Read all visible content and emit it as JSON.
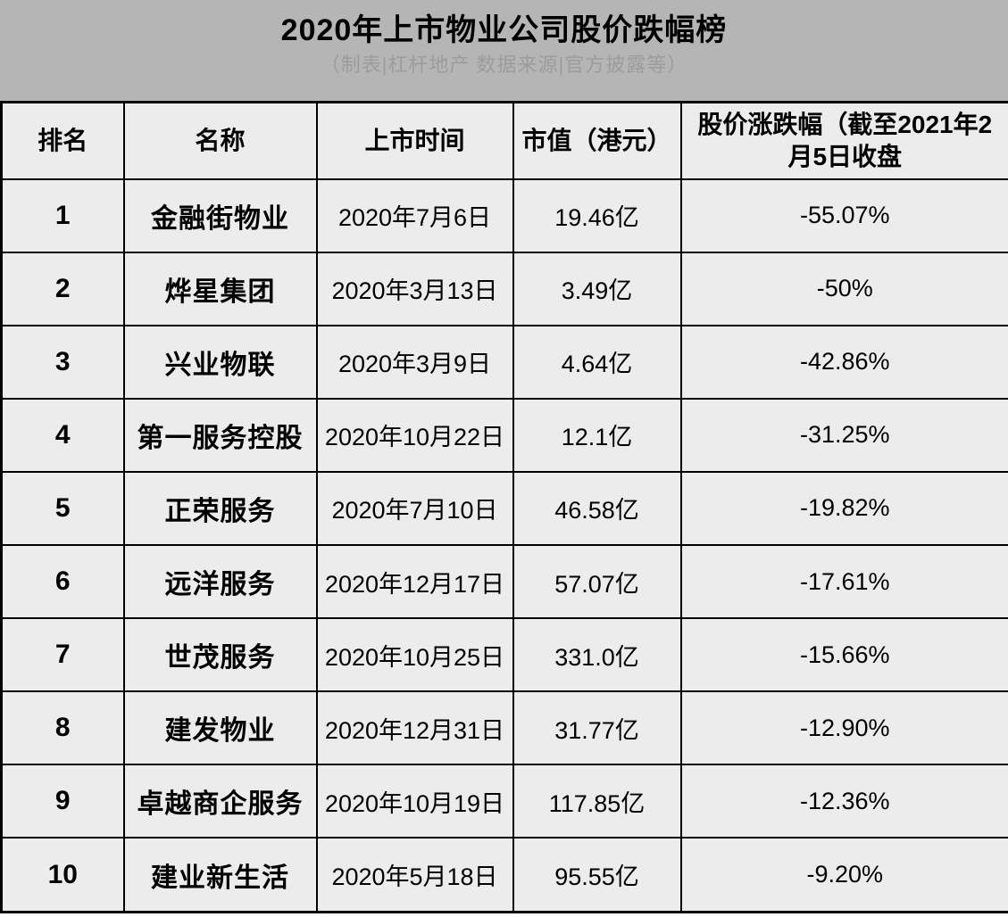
{
  "title": "2020年上市物业公司股价跌幅榜",
  "subtitle": "（制表|杠杆地产 数据来源|官方披露等）",
  "colors": {
    "title_band_bg": "#b5b5b5",
    "subtitle_text": "#9c9c9c",
    "cell_bg": "#ececec",
    "border": "#000000",
    "text": "#000000"
  },
  "chart_data": {
    "type": "table",
    "title": "2020年上市物业公司股价跌幅榜",
    "subtitle": "（制表|杠杆地产 数据来源|官方披露等）",
    "columns": [
      "排名",
      "名称",
      "上市时间",
      "市值（港元）",
      "股价涨跌幅（截至2021年2月5日收盘"
    ],
    "rows": [
      [
        "1",
        "金融街物业",
        "2020年7月6日",
        "19.46亿",
        "-55.07%"
      ],
      [
        "2",
        "烨星集团",
        "2020年3月13日",
        "3.49亿",
        "-50%"
      ],
      [
        "3",
        "兴业物联",
        "2020年3月9日",
        "4.64亿",
        "-42.86%"
      ],
      [
        "4",
        "第一服务控股",
        "2020年10月22日",
        "12.1亿",
        "-31.25%"
      ],
      [
        "5",
        "正荣服务",
        "2020年7月10日",
        "46.58亿",
        "-19.82%"
      ],
      [
        "6",
        "远洋服务",
        "2020年12月17日",
        "57.07亿",
        "-17.61%"
      ],
      [
        "7",
        "世茂服务",
        "2020年10月25日",
        "331.0亿",
        "-15.66%"
      ],
      [
        "8",
        "建发物业",
        "2020年12月31日",
        "31.77亿",
        "-12.90%"
      ],
      [
        "9",
        "卓越商企服务",
        "2020年10月19日",
        "117.85亿",
        "-12.36%"
      ],
      [
        "10",
        "建业新生活",
        "2020年5月18日",
        "95.55亿",
        "-9.20%"
      ]
    ]
  }
}
